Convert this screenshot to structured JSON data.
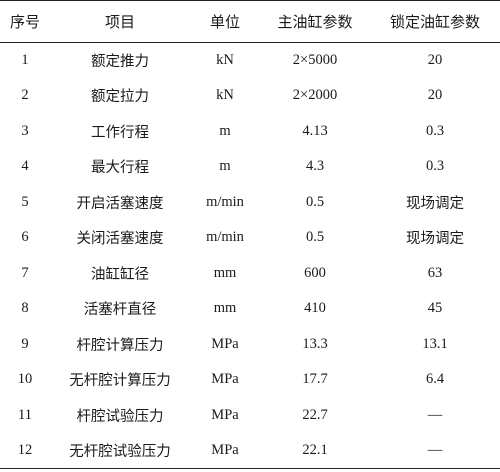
{
  "table": {
    "headers": {
      "no": "序号",
      "item": "项目",
      "unit": "单位",
      "main": "主油缸参数",
      "lock": "锁定油缸参数"
    },
    "rows": [
      {
        "no": "1",
        "item": "额定推力",
        "unit": "kN",
        "main": "2×5000",
        "lock": "20"
      },
      {
        "no": "2",
        "item": "额定拉力",
        "unit": "kN",
        "main": "2×2000",
        "lock": "20"
      },
      {
        "no": "3",
        "item": "工作行程",
        "unit": "m",
        "main": "4.13",
        "lock": "0.3"
      },
      {
        "no": "4",
        "item": "最大行程",
        "unit": "m",
        "main": "4.3",
        "lock": "0.3"
      },
      {
        "no": "5",
        "item": "开启活塞速度",
        "unit": "m/min",
        "main": "0.5",
        "lock": "现场调定"
      },
      {
        "no": "6",
        "item": "关闭活塞速度",
        "unit": "m/min",
        "main": "0.5",
        "lock": "现场调定"
      },
      {
        "no": "7",
        "item": "油缸缸径",
        "unit": "mm",
        "main": "600",
        "lock": "63"
      },
      {
        "no": "8",
        "item": "活塞杆直径",
        "unit": "mm",
        "main": "410",
        "lock": "45"
      },
      {
        "no": "9",
        "item": "杆腔计算压力",
        "unit": "MPa",
        "main": "13.3",
        "lock": "13.1"
      },
      {
        "no": "10",
        "item": "无杆腔计算压力",
        "unit": "MPa",
        "main": "17.7",
        "lock": "6.4"
      },
      {
        "no": "11",
        "item": "杆腔试验压力",
        "unit": "MPa",
        "main": "22.7",
        "lock": "—"
      },
      {
        "no": "12",
        "item": "无杆腔试验压力",
        "unit": "MPa",
        "main": "22.1",
        "lock": "—"
      }
    ]
  }
}
